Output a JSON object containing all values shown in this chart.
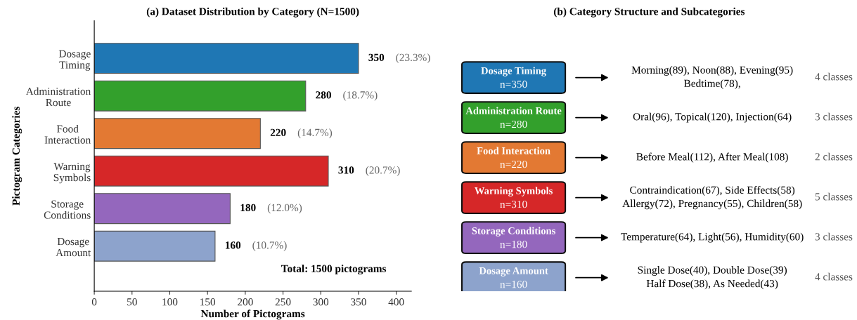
{
  "chart_data": [
    {
      "type": "bar",
      "orientation": "horizontal",
      "title": "(a) Dataset Distribution by Category (N=1500)",
      "xlabel": "Number of Pictograms",
      "ylabel": "Pictogram Categories",
      "categories": [
        "Dosage\nTiming",
        "Administration\nRoute",
        "Food\nInteraction",
        "Warning\nSymbols",
        "Storage\nConditions",
        "Dosage\nAmount"
      ],
      "values": [
        350,
        280,
        220,
        310,
        180,
        160
      ],
      "colors": [
        "#1f77b4",
        "#33a02c",
        "#e37933",
        "#d62728",
        "#9467bd",
        "#8da3cc"
      ],
      "xlim": [
        0,
        420
      ],
      "xticks": [
        0,
        50,
        100,
        150,
        200,
        250,
        300,
        350,
        400
      ],
      "data_labels": true,
      "grid": false,
      "annotations": [
        "(23.3%)",
        "(18.7%)",
        "(14.7%)",
        "(20.7%)",
        "(12.0%)",
        "(10.7%)",
        "Total: 1500 pictograms"
      ]
    },
    {
      "type": "other",
      "title": "(b) Category Structure and Subcategories",
      "categories": [
        "Dosage Timing",
        "Administration Route",
        "Food Interaction",
        "Warning Symbols",
        "Storage Conditions",
        "Dosage Amount"
      ],
      "value_labels": [
        "n=350",
        "n=280",
        "n=220",
        "n=310",
        "n=180",
        "n=160"
      ],
      "colors": [
        "#1f77b4",
        "#33a02c",
        "#e37933",
        "#d62728",
        "#9467bd",
        "#8da3cc"
      ],
      "annotations": [
        "Morning(89), Noon(88), Evening(95)\nBedtime(78),",
        "4 classes",
        "Oral(96), Topical(120), Injection(64)",
        "3 classes",
        "Before Meal(112), After Meal(108)",
        "2 classes",
        "Contraindication(67), Side Effects(58)\nAllergy(72), Pregnancy(55), Children(58)",
        "5 classes",
        "Temperature(64), Light(56), Humidity(60)",
        "3 classes",
        "Single Dose(40), Double Dose(39)\nHalf Dose(38), As Needed(43)",
        "4 classes"
      ]
    }
  ]
}
